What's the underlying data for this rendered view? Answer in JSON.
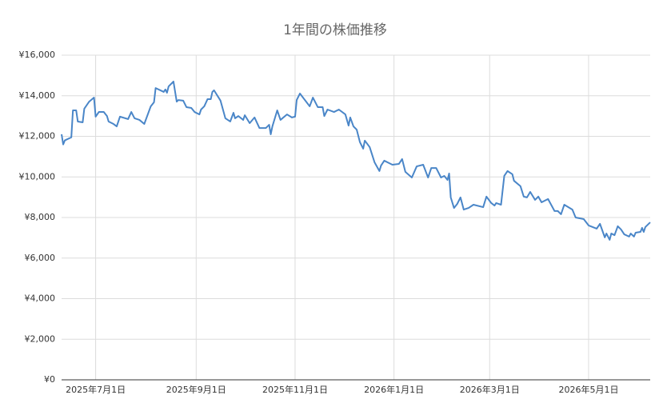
{
  "chart_data": {
    "type": "line",
    "title": "1年間の株価推移",
    "color": "#4a86c8",
    "grid": true,
    "x": [
      "2025-06-10",
      "2025-06-11",
      "2025-06-12",
      "2025-06-16",
      "2025-06-17",
      "2025-06-19",
      "2025-06-20",
      "2025-06-23",
      "2025-06-24",
      "2025-06-27",
      "2025-06-30",
      "2025-07-01",
      "2025-07-03",
      "2025-07-06",
      "2025-07-08",
      "2025-07-09",
      "2025-07-12",
      "2025-07-14",
      "2025-07-16",
      "2025-07-21",
      "2025-07-23",
      "2025-07-25",
      "2025-07-28",
      "2025-07-31",
      "2025-08-04",
      "2025-08-06",
      "2025-08-07",
      "2025-08-12",
      "2025-08-13",
      "2025-08-14",
      "2025-08-15",
      "2025-08-18",
      "2025-08-20",
      "2025-08-21",
      "2025-08-24",
      "2025-08-26",
      "2025-08-29",
      "2025-08-31",
      "2025-09-03",
      "2025-09-04",
      "2025-09-06",
      "2025-09-08",
      "2025-09-10",
      "2025-09-11",
      "2025-09-12",
      "2025-09-16",
      "2025-09-19",
      "2025-09-22",
      "2025-09-24",
      "2025-09-25",
      "2025-09-27",
      "2025-09-30",
      "2025-10-01",
      "2025-10-04",
      "2025-10-07",
      "2025-10-10",
      "2025-10-14",
      "2025-10-16",
      "2025-10-17",
      "2025-10-18",
      "2025-10-21",
      "2025-10-23",
      "2025-10-27",
      "2025-10-30",
      "2025-11-01",
      "2025-11-02",
      "2025-11-04",
      "2025-11-10",
      "2025-11-12",
      "2025-11-15",
      "2025-11-18",
      "2025-11-19",
      "2025-11-21",
      "2025-11-25",
      "2025-11-28",
      "2025-12-02",
      "2025-12-04",
      "2025-12-05",
      "2025-12-07",
      "2025-12-09",
      "2025-12-11",
      "2025-12-13",
      "2025-12-14",
      "2025-12-17",
      "2025-12-20",
      "2025-12-23",
      "2025-12-24",
      "2025-12-26",
      "2025-12-29",
      "2025-12-31",
      "2026-01-04",
      "2026-01-06",
      "2026-01-08",
      "2026-01-12",
      "2026-01-15",
      "2026-01-19",
      "2026-01-22",
      "2026-01-24",
      "2026-01-27",
      "2026-01-30",
      "2026-02-01",
      "2026-02-03",
      "2026-02-04",
      "2026-02-05",
      "2026-02-07",
      "2026-02-09",
      "2026-02-11",
      "2026-02-13",
      "2026-02-16",
      "2026-02-19",
      "2026-02-25",
      "2026-02-27",
      "2026-03-02",
      "2026-03-04",
      "2026-03-05",
      "2026-03-08",
      "2026-03-10",
      "2026-03-12",
      "2026-03-15",
      "2026-03-16",
      "2026-03-20",
      "2026-03-22",
      "2026-03-24",
      "2026-03-26",
      "2026-03-29",
      "2026-03-31",
      "2026-04-02",
      "2026-04-06",
      "2026-04-10",
      "2026-04-12",
      "2026-04-14",
      "2026-04-16",
      "2026-04-21",
      "2026-04-23",
      "2026-04-28",
      "2026-05-01",
      "2026-05-06",
      "2026-05-08",
      "2026-05-11",
      "2026-05-12",
      "2026-05-14",
      "2026-05-15",
      "2026-05-17",
      "2026-05-19",
      "2026-05-21",
      "2026-05-23",
      "2026-05-26",
      "2026-05-27",
      "2026-05-29",
      "2026-05-30",
      "2026-06-02",
      "2026-06-03",
      "2026-06-04",
      "2026-06-05",
      "2026-06-08"
    ],
    "values": [
      12100,
      11600,
      11800,
      11950,
      13280,
      13280,
      12730,
      12690,
      13360,
      13710,
      13910,
      12970,
      13200,
      13200,
      13000,
      12730,
      12610,
      12490,
      12970,
      12850,
      13200,
      12890,
      12810,
      12610,
      13480,
      13680,
      14380,
      14190,
      14310,
      14150,
      14460,
      14700,
      13710,
      13790,
      13760,
      13440,
      13400,
      13200,
      13080,
      13320,
      13480,
      13830,
      13830,
      14190,
      14270,
      13760,
      12890,
      12730,
      13160,
      12890,
      13000,
      12810,
      13040,
      12650,
      12930,
      12410,
      12410,
      12570,
      12100,
      12490,
      13280,
      12810,
      13080,
      12930,
      12970,
      13790,
      14110,
      13480,
      13910,
      13440,
      13440,
      13000,
      13320,
      13200,
      13320,
      13080,
      12530,
      12930,
      12490,
      12330,
      11710,
      11390,
      11790,
      11470,
      10720,
      10290,
      10560,
      10800,
      10680,
      10600,
      10640,
      10880,
      10250,
      9970,
      10520,
      10600,
      9970,
      10440,
      10440,
      9970,
      10050,
      9850,
      10170,
      8990,
      8470,
      8670,
      8990,
      8390,
      8470,
      8630,
      8510,
      9030,
      8710,
      8590,
      8710,
      8630,
      10050,
      10290,
      10130,
      9810,
      9540,
      9030,
      8990,
      9260,
      8870,
      9030,
      8750,
      8910,
      8320,
      8320,
      8160,
      8630,
      8390,
      8000,
      7920,
      7610,
      7450,
      7690,
      7020,
      7210,
      6900,
      7210,
      7130,
      7570,
      7410,
      7170,
      7060,
      7210,
      7060,
      7250,
      7290,
      7490,
      7290,
      7530,
      7760
    ],
    "xlim": [
      "2025-06-10",
      "2026-06-08"
    ],
    "xticks": [
      {
        "value": "2025-07-01",
        "label": "2025年7月1日"
      },
      {
        "value": "2025-09-01",
        "label": "2025年9月1日"
      },
      {
        "value": "2025-11-01",
        "label": "2025年11月1日"
      },
      {
        "value": "2026-01-01",
        "label": "2026年1月1日"
      },
      {
        "value": "2026-03-01",
        "label": "2026年3月1日"
      },
      {
        "value": "2026-05-01",
        "label": "2026年5月1日"
      }
    ],
    "ylim": [
      0,
      16000
    ],
    "yticks": [
      {
        "value": 0,
        "label": "¥0"
      },
      {
        "value": 2000,
        "label": "¥2,000"
      },
      {
        "value": 4000,
        "label": "¥4,000"
      },
      {
        "value": 6000,
        "label": "¥6,000"
      },
      {
        "value": 8000,
        "label": "¥8,000"
      },
      {
        "value": 10000,
        "label": "¥10,000"
      },
      {
        "value": 12000,
        "label": "¥12,000"
      },
      {
        "value": 14000,
        "label": "¥14,000"
      },
      {
        "value": 16000,
        "label": "¥16,000"
      }
    ]
  }
}
